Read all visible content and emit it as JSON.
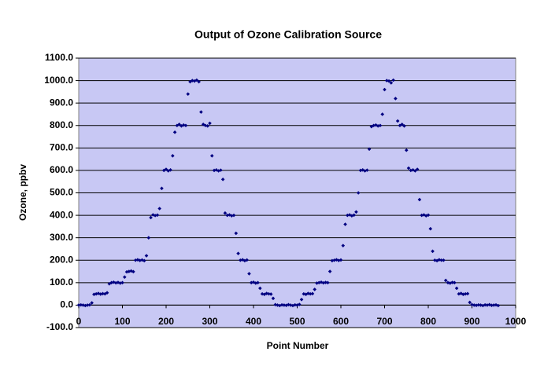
{
  "chart_data": {
    "type": "scatter",
    "title": "Output of Ozone Calibration Source",
    "xlabel": "Point Number",
    "ylabel": "Ozone, ppbv",
    "xlim": [
      0,
      1000
    ],
    "ylim": [
      -100,
      1100
    ],
    "xticks": [
      0,
      100,
      200,
      300,
      400,
      500,
      600,
      700,
      800,
      900,
      1000
    ],
    "yticks": [
      {
        "value": -100,
        "label": "-100.0"
      },
      {
        "value": 0,
        "label": "0.0"
      },
      {
        "value": 100,
        "label": "100.0"
      },
      {
        "value": 200,
        "label": "200.0"
      },
      {
        "value": 300,
        "label": "300.0"
      },
      {
        "value": 400,
        "label": "400.0"
      },
      {
        "value": 500,
        "label": "500.0"
      },
      {
        "value": 600,
        "label": "600.0"
      },
      {
        "value": 700,
        "label": "700.0"
      },
      {
        "value": 800,
        "label": "800.0"
      },
      {
        "value": 900,
        "label": "900.0"
      },
      {
        "value": 1000,
        "label": "1000.0"
      },
      {
        "value": 1100,
        "label": "1100.0"
      }
    ],
    "grid": true,
    "background": "#c8c8f4",
    "series": [
      {
        "color": "#000080",
        "x": [
          0,
          5,
          10,
          15,
          20,
          25,
          30,
          35,
          40,
          45,
          50,
          55,
          60,
          65,
          70,
          75,
          80,
          85,
          90,
          95,
          100,
          105,
          110,
          115,
          120,
          125,
          130,
          135,
          140,
          145,
          150,
          155,
          160,
          165,
          170,
          175,
          180,
          185,
          190,
          195,
          200,
          205,
          210,
          215,
          220,
          225,
          230,
          235,
          240,
          245,
          250,
          255,
          260,
          265,
          270,
          275,
          280,
          285,
          290,
          295,
          300,
          305,
          310,
          315,
          320,
          325,
          330,
          335,
          340,
          345,
          350,
          355,
          360,
          365,
          370,
          375,
          380,
          385,
          390,
          395,
          400,
          405,
          410,
          415,
          420,
          425,
          430,
          435,
          440,
          445,
          450,
          455,
          460,
          465,
          470,
          475,
          480,
          485,
          490,
          495,
          500,
          505,
          510,
          515,
          520,
          525,
          530,
          535,
          540,
          545,
          550,
          555,
          560,
          565,
          570,
          575,
          580,
          585,
          590,
          595,
          600,
          605,
          610,
          615,
          620,
          625,
          630,
          635,
          640,
          645,
          650,
          655,
          660,
          665,
          670,
          675,
          680,
          685,
          690,
          695,
          700,
          705,
          710,
          715,
          720,
          725,
          730,
          735,
          740,
          745,
          750,
          755,
          760,
          765,
          770,
          775,
          780,
          785,
          790,
          795,
          800,
          805,
          810,
          815,
          820,
          825,
          830,
          835,
          840,
          845,
          850,
          855,
          860,
          865,
          870,
          875,
          880,
          885,
          890,
          895,
          900,
          905,
          910,
          915,
          920,
          925,
          930,
          935,
          940,
          945,
          950,
          955,
          960
        ],
        "values": [
          0,
          1,
          0,
          -2,
          0,
          1,
          10,
          48,
          50,
          52,
          49,
          51,
          50,
          55,
          95,
          100,
          102,
          99,
          101,
          98,
          100,
          125,
          148,
          150,
          152,
          149,
          200,
          202,
          199,
          201,
          198,
          220,
          300,
          390,
          402,
          399,
          401,
          430,
          520,
          600,
          605,
          598,
          602,
          665,
          770,
          800,
          805,
          798,
          802,
          800,
          940,
          995,
          1000,
          998,
          1002,
          995,
          860,
          805,
          800,
          798,
          810,
          665,
          600,
          602,
          598,
          601,
          560,
          410,
          400,
          402,
          398,
          400,
          320,
          230,
          200,
          202,
          198,
          201,
          140,
          100,
          102,
          98,
          100,
          75,
          50,
          48,
          52,
          50,
          49,
          30,
          2,
          0,
          -2,
          1,
          0,
          -1,
          2,
          0,
          -2,
          1,
          0,
          3,
          25,
          50,
          48,
          52,
          50,
          51,
          70,
          98,
          100,
          102,
          99,
          101,
          100,
          150,
          198,
          200,
          202,
          199,
          201,
          265,
          360,
          400,
          402,
          398,
          401,
          415,
          500,
          600,
          602,
          598,
          601,
          695,
          795,
          800,
          802,
          798,
          800,
          850,
          960,
          1000,
          998,
          990,
          1002,
          920,
          820,
          800,
          805,
          798,
          690,
          610,
          600,
          602,
          598,
          605,
          470,
          400,
          402,
          398,
          401,
          340,
          240,
          200,
          198,
          202,
          200,
          200,
          110,
          100,
          98,
          101,
          100,
          75,
          50,
          52,
          48,
          50,
          51,
          12,
          2,
          0,
          -1,
          1,
          0,
          -2,
          1,
          0,
          2,
          -1,
          0,
          1,
          -2
        ]
      }
    ]
  }
}
